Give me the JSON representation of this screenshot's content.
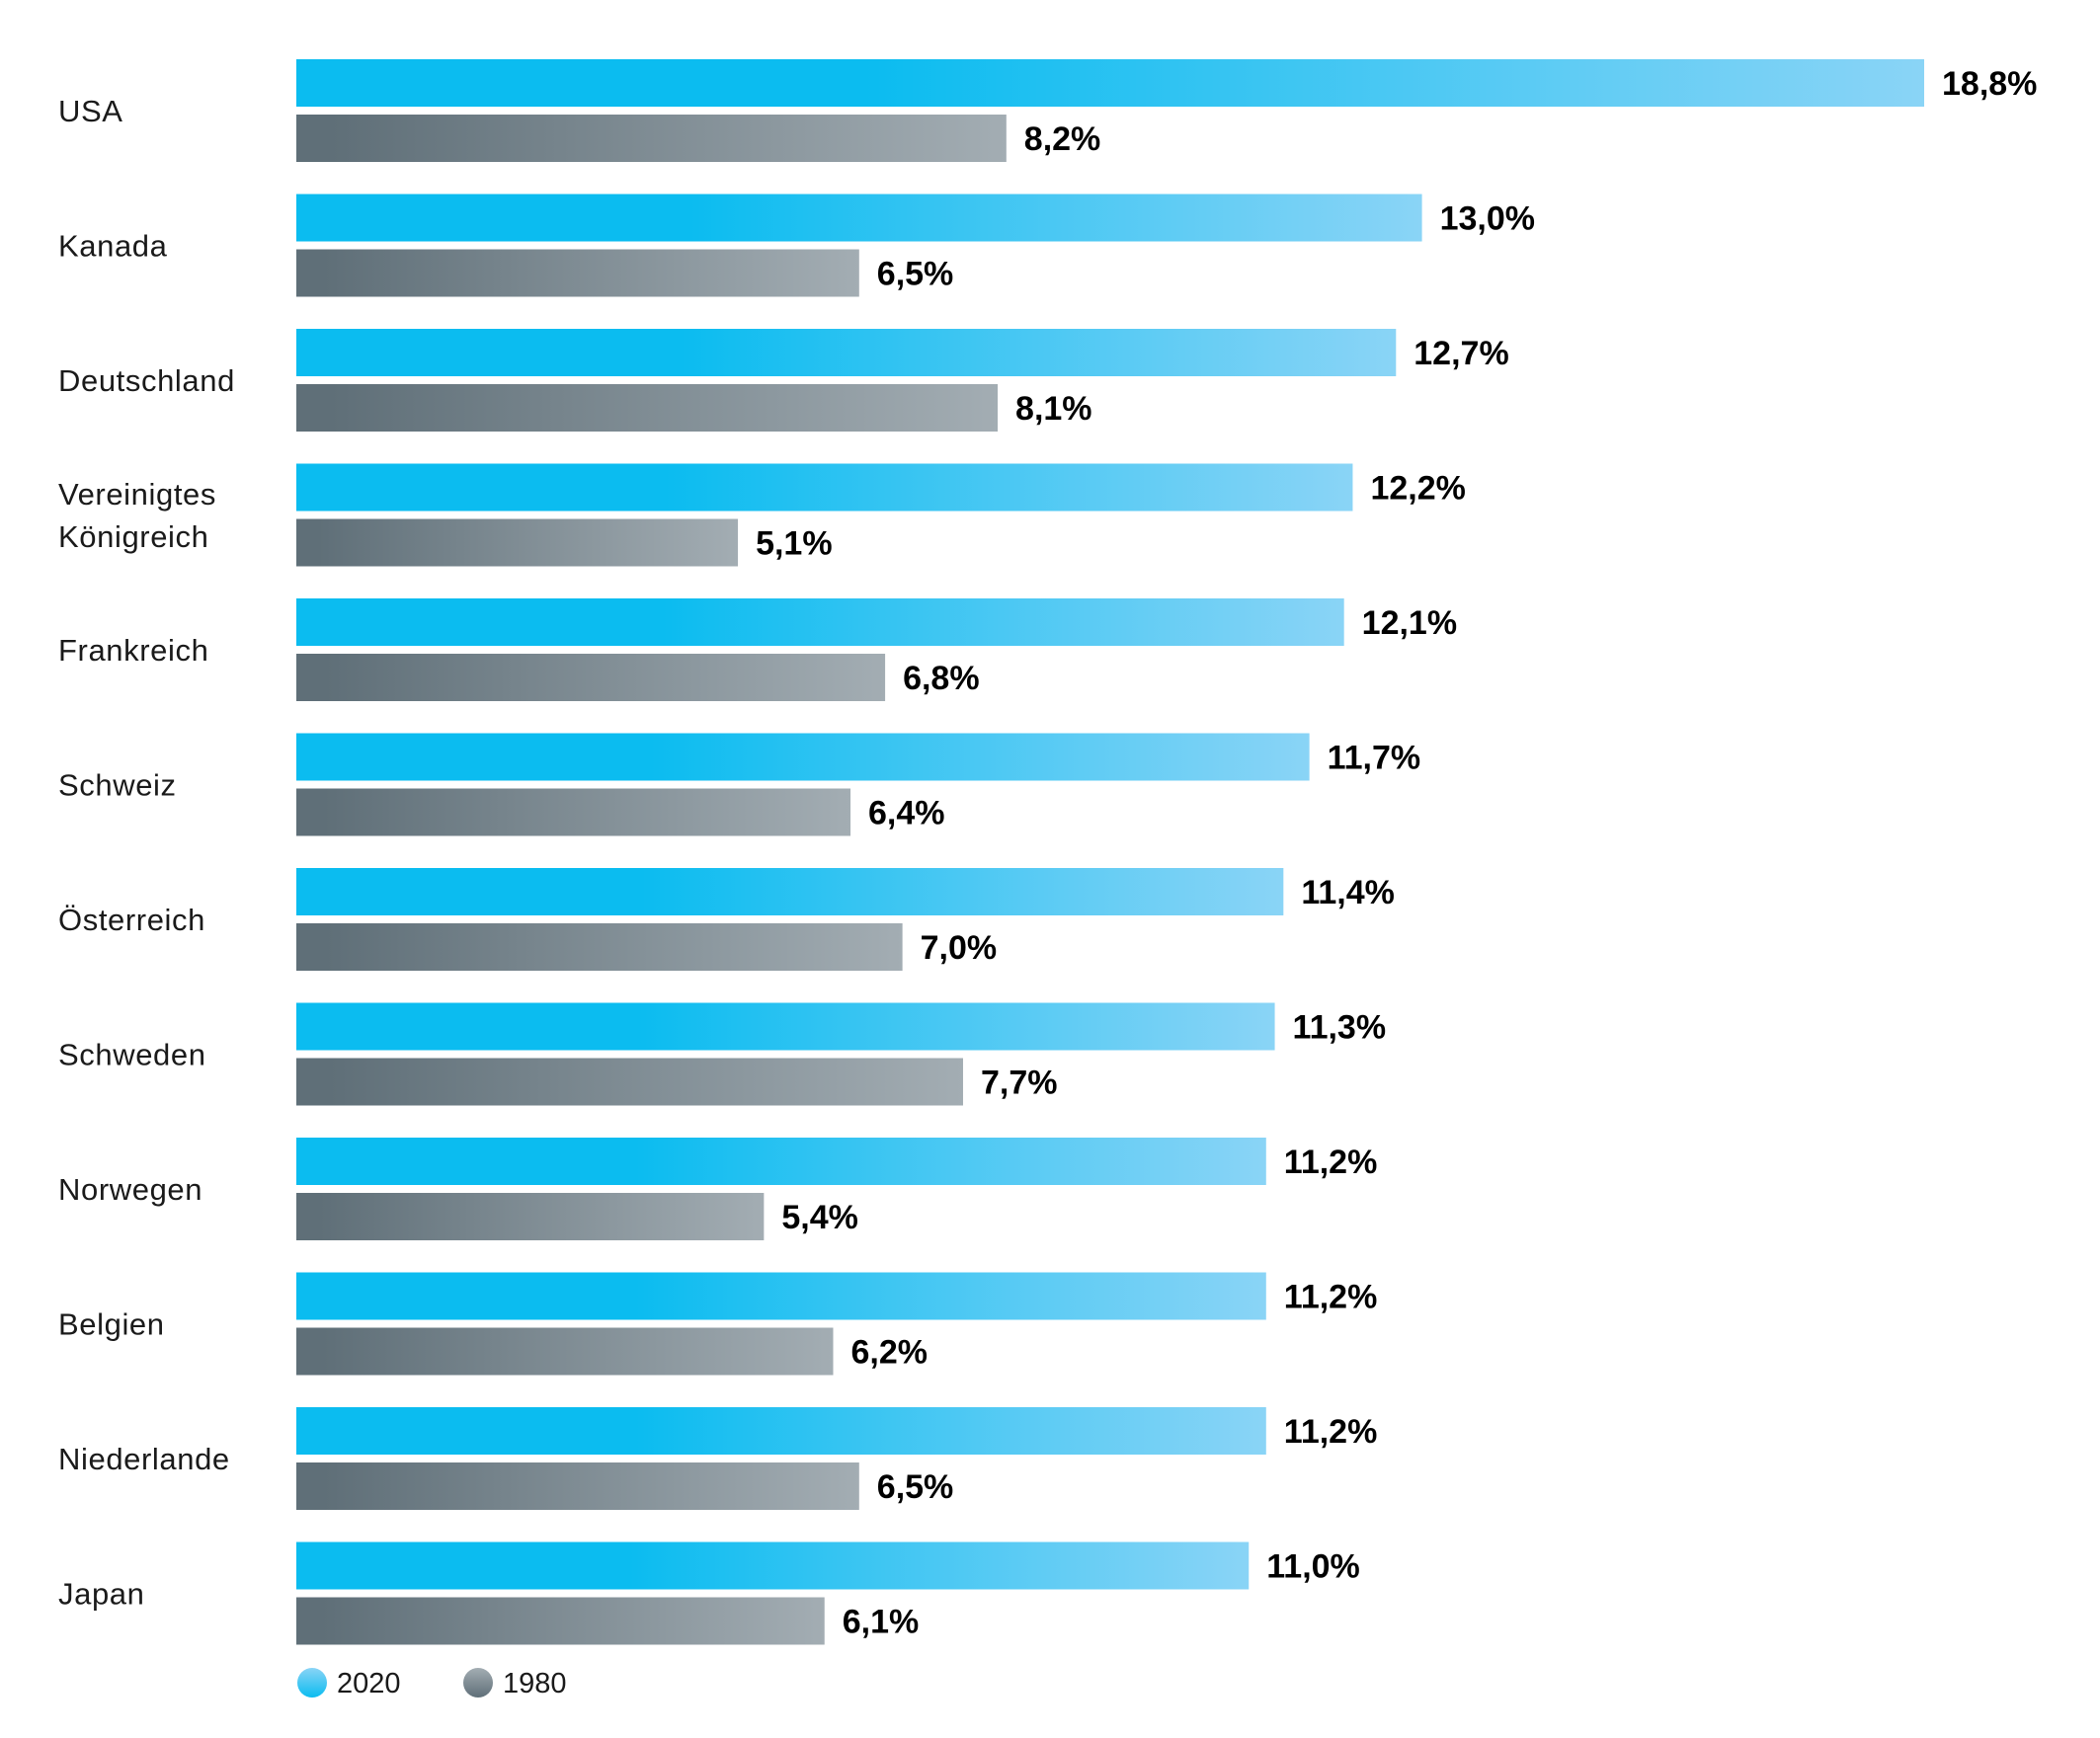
{
  "chart_data": {
    "type": "bar",
    "orientation": "horizontal",
    "categories": [
      "USA",
      "Kanada",
      "Deutschland",
      "Vereinigtes Königreich",
      "Frankreich",
      "Schweiz",
      "Österreich",
      "Schweden",
      "Norwegen",
      "Belgien",
      "Niederlande",
      "Japan"
    ],
    "series": [
      {
        "name": "2020",
        "values": [
          18.8,
          13.0,
          12.7,
          12.2,
          12.1,
          11.7,
          11.4,
          11.3,
          11.2,
          11.2,
          11.2,
          11.0
        ],
        "labels": [
          "18,8%",
          "13,0%",
          "12,7%",
          "12,2%",
          "12,1%",
          "11,7%",
          "11,4%",
          "11,3%",
          "11,2%",
          "11,2%",
          "11,2%",
          "11,0%"
        ],
        "color_start": "#0bbcf0",
        "color_end": "#8ad4f6"
      },
      {
        "name": "1980",
        "values": [
          8.2,
          6.5,
          8.1,
          5.1,
          6.8,
          6.4,
          7.0,
          7.7,
          5.4,
          6.2,
          6.5,
          6.1
        ],
        "labels": [
          "8,2%",
          "6,5%",
          "8,1%",
          "5,1%",
          "6,8%",
          "6,4%",
          "7,0%",
          "7,7%",
          "5,4%",
          "6,2%",
          "6,5%",
          "6,1%"
        ],
        "color_start": "#5f6f78",
        "color_end": "#a3adb3"
      }
    ],
    "xlim": [
      0,
      18.8
    ],
    "grid": false,
    "legend_position": "bottom-left"
  }
}
